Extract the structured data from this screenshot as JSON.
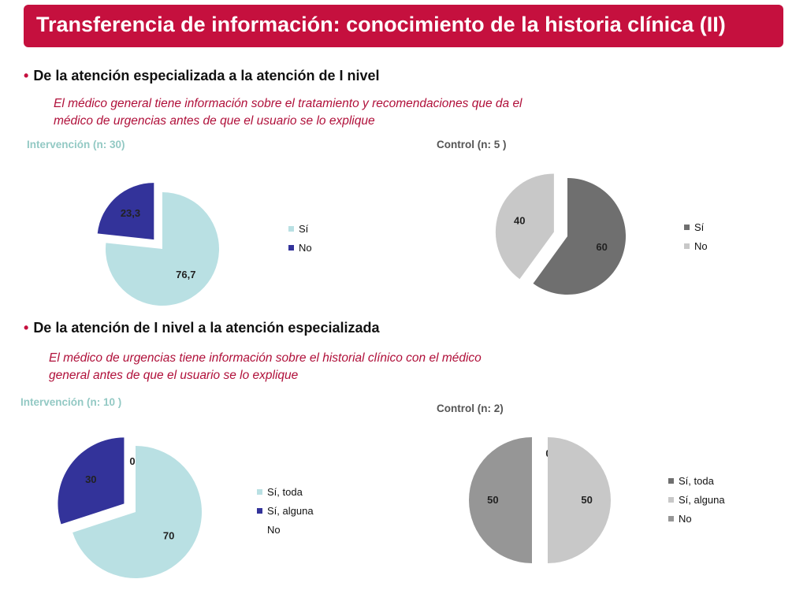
{
  "title": "Transferencia de información: conocimiento de la historia clínica (II)",
  "sections": [
    {
      "bullet": "De la atención especializada a la atención de I nivel",
      "description_lines": [
        "El médico general tiene información sobre el tratamiento y recomendaciones que da el",
        "médico de urgencias antes de que el usuario se lo explique"
      ]
    },
    {
      "bullet": "De la atención de I nivel a la atención especializada",
      "description_lines": [
        "El  médico de urgencias tiene información sobre el historial clínico con el médico",
        "general antes de que el usuario se lo explique"
      ]
    }
  ],
  "chart_data": [
    {
      "type": "pie",
      "title": "Intervención (n: 30)",
      "title_color": "#93c9c4",
      "categories": [
        "Sí",
        "No"
      ],
      "values": [
        76.7,
        23.3
      ],
      "labels": [
        "76,7",
        "23,3"
      ],
      "colors": [
        "#b9e0e3",
        "#33339a"
      ],
      "exploded": [
        false,
        true
      ],
      "legend_colors": [
        "#b9e0e3",
        "#33339a"
      ],
      "legend_placement": "right"
    },
    {
      "type": "pie",
      "title": "Control  (n: 5 )",
      "title_color": "#555555",
      "categories": [
        "Sí",
        "No"
      ],
      "values": [
        60,
        40
      ],
      "labels": [
        "60",
        "40"
      ],
      "colors": [
        "#6f6f6f",
        "#c8c8c8"
      ],
      "exploded": [
        false,
        true
      ],
      "legend_colors": [
        "#6f6f6f",
        "#c8c8c8"
      ],
      "legend_placement": "right"
    },
    {
      "type": "pie",
      "title": "Intervención (n: 10 )",
      "title_color": "#93c9c4",
      "categories": [
        "Sí, toda",
        "Sí, alguna",
        "No"
      ],
      "values": [
        70,
        30,
        0
      ],
      "labels": [
        "70",
        "30",
        "0"
      ],
      "colors": [
        "#b9e0e3",
        "#33339a",
        "#ffffff"
      ],
      "exploded": [
        false,
        true,
        false
      ],
      "legend_colors": [
        "#b9e0e3",
        "#33339a",
        "#ffffff"
      ],
      "legend_placement": "right"
    },
    {
      "type": "pie",
      "title": "Control  (n:  2)",
      "title_color": "#555555",
      "categories": [
        "Sí, toda",
        "Sí, alguna",
        "No"
      ],
      "values": [
        0,
        50,
        50
      ],
      "labels": [
        "0",
        "50",
        "50"
      ],
      "colors": [
        "#6f6f6f",
        "#c8c8c8",
        "#969696"
      ],
      "exploded": [
        false,
        false,
        true
      ],
      "legend_colors": [
        "#6f6f6f",
        "#c8c8c8",
        "#969696"
      ],
      "legend_placement": "right"
    }
  ]
}
